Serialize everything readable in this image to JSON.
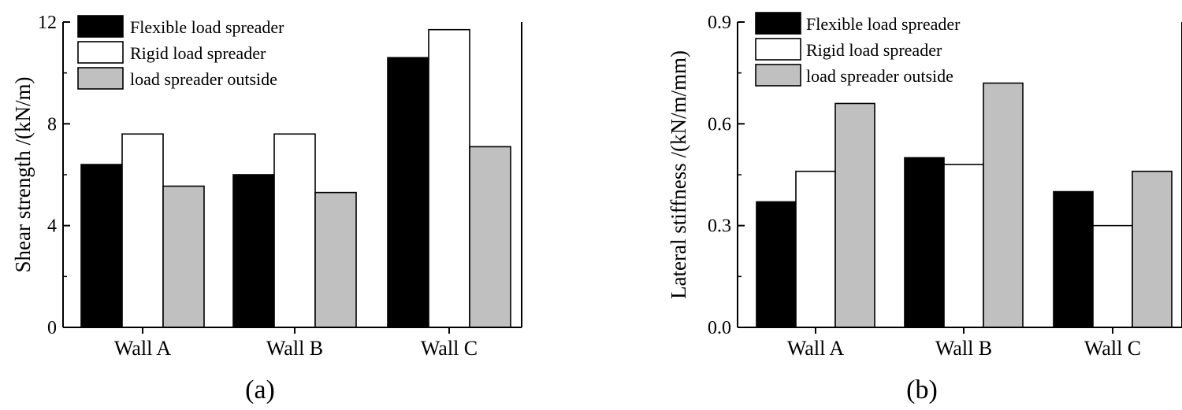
{
  "chart_data": [
    {
      "type": "bar",
      "panel_label": "(a)",
      "title": "",
      "xlabel": "",
      "ylabel": "Shear strength /(kN/m)",
      "categories": [
        "Wall A",
        "Wall B",
        "Wall C"
      ],
      "ylim": [
        0,
        12
      ],
      "yticks": [
        "0",
        "4",
        "8",
        "12"
      ],
      "series": [
        {
          "name": "Flexible load spreader",
          "color": "#000000",
          "values": [
            6.4,
            6.0,
            10.6
          ]
        },
        {
          "name": "Rigid load spreader",
          "color": "#ffffff",
          "values": [
            7.6,
            7.6,
            11.7
          ]
        },
        {
          "name": "load spreader outside",
          "color": "#c0c0c0",
          "values": [
            5.55,
            5.3,
            7.1
          ]
        }
      ],
      "legend": "top-left",
      "grid": false
    },
    {
      "type": "bar",
      "panel_label": "(b)",
      "title": "",
      "xlabel": "",
      "ylabel": "Lateral stiffness /(kN/m/mm)",
      "categories": [
        "Wall A",
        "Wall B",
        "Wall C"
      ],
      "ylim": [
        0,
        0.9
      ],
      "yticks": [
        "0.0",
        "0.3",
        "0.6",
        "0.9"
      ],
      "series": [
        {
          "name": "Flexible load spreader",
          "color": "#000000",
          "values": [
            0.37,
            0.5,
            0.4
          ]
        },
        {
          "name": "Rigid load spreader",
          "color": "#ffffff",
          "values": [
            0.46,
            0.48,
            0.3
          ]
        },
        {
          "name": "load spreader outside",
          "color": "#c0c0c0",
          "values": [
            0.66,
            0.72,
            0.46
          ]
        }
      ],
      "legend": "top-left",
      "grid": false
    }
  ]
}
